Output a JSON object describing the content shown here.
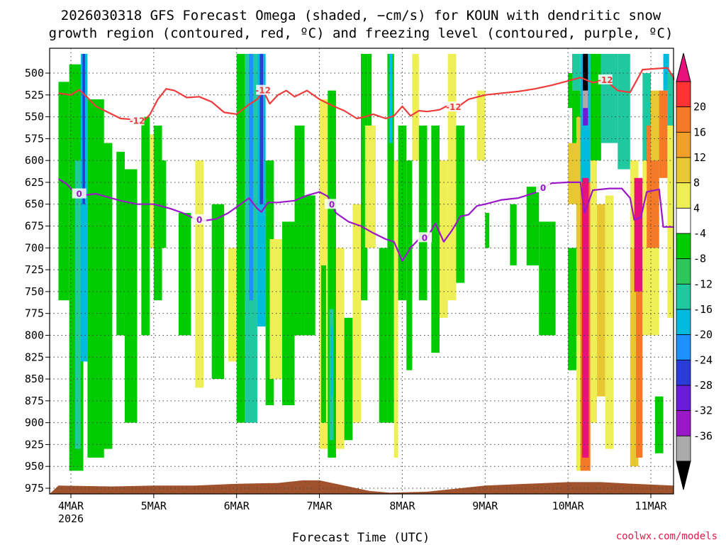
{
  "chart_data": {
    "type": "heatmap",
    "title_line1": "2026030318 GFS Forecast Omega (shaded, −cm/s) for KOUN with dendritic snow",
    "title_line2": "growth region (contoured, red, ºC) and freezing level (contoured, purple, ºC)",
    "xlabel": "Forecast Time (UTC)",
    "credit": "coolwx.com/models",
    "x_ticks": [
      {
        "day": 4,
        "label": "4MAR",
        "sublabel": "2026"
      },
      {
        "day": 5,
        "label": "5MAR"
      },
      {
        "day": 6,
        "label": "6MAR"
      },
      {
        "day": 7,
        "label": "7MAR"
      },
      {
        "day": 8,
        "label": "8MAR"
      },
      {
        "day": 9,
        "label": "9MAR"
      },
      {
        "day": 10,
        "label": "10MAR"
      },
      {
        "day": 11,
        "label": "11MAR"
      }
    ],
    "xlim_days": [
      3.85,
      11.4
    ],
    "y_ticks": [
      "500",
      "525",
      "550",
      "575",
      "600",
      "625",
      "650",
      "675",
      "700",
      "725",
      "750",
      "775",
      "800",
      "825",
      "850",
      "875",
      "900",
      "925",
      "950",
      "975"
    ],
    "ylim_hpa": [
      478,
      988
    ],
    "colorbar": {
      "labels": [
        "20",
        "16",
        "12",
        "8",
        "4",
        "-4",
        "-8",
        "-12",
        "-16",
        "-20",
        "-24",
        "-28",
        "-32",
        "-36"
      ],
      "colors": [
        "#e8127a",
        "#ff3333",
        "#f47a28",
        "#f0a028",
        "#e8c832",
        "#eeee55",
        "#ffffff",
        "#00cc00",
        "#2ec85a",
        "#20c8a0",
        "#00bbdd",
        "#1e90ff",
        "#2a3cd8",
        "#6a1cd8",
        "#9a18c8",
        "#aaaaaa",
        "#000000"
      ]
    },
    "dgz_label": "-12",
    "dgz_curve_hpa": [
      [
        3.85,
        523
      ],
      [
        4.0,
        525
      ],
      [
        4.1,
        519
      ],
      [
        4.2,
        528
      ],
      [
        4.3,
        538
      ],
      [
        4.45,
        545
      ],
      [
        4.6,
        552
      ],
      [
        4.75,
        553
      ],
      [
        4.85,
        557
      ],
      [
        4.95,
        548
      ],
      [
        5.05,
        530
      ],
      [
        5.15,
        518
      ],
      [
        5.25,
        520
      ],
      [
        5.4,
        528
      ],
      [
        5.55,
        527
      ],
      [
        5.7,
        533
      ],
      [
        5.85,
        545
      ],
      [
        6.0,
        547
      ],
      [
        6.15,
        536
      ],
      [
        6.25,
        530
      ],
      [
        6.32,
        520
      ],
      [
        6.4,
        535
      ],
      [
        6.5,
        525
      ],
      [
        6.6,
        520
      ],
      [
        6.7,
        527
      ],
      [
        6.85,
        520
      ],
      [
        7.0,
        530
      ],
      [
        7.15,
        537
      ],
      [
        7.3,
        543
      ],
      [
        7.45,
        552
      ],
      [
        7.55,
        550
      ],
      [
        7.65,
        547
      ],
      [
        7.8,
        552
      ],
      [
        7.9,
        549
      ],
      [
        8.0,
        538
      ],
      [
        8.1,
        549
      ],
      [
        8.2,
        543
      ],
      [
        8.3,
        544
      ],
      [
        8.45,
        542
      ],
      [
        8.55,
        537
      ],
      [
        8.65,
        540
      ],
      [
        8.8,
        530
      ],
      [
        9.0,
        525
      ],
      [
        9.2,
        523
      ],
      [
        9.4,
        521
      ],
      [
        9.6,
        518
      ],
      [
        9.8,
        514
      ],
      [
        10.0,
        509
      ],
      [
        10.15,
        505
      ],
      [
        10.3,
        511
      ],
      [
        10.45,
        508
      ],
      [
        10.6,
        520
      ],
      [
        10.75,
        522
      ],
      [
        10.9,
        496
      ],
      [
        11.05,
        495
      ],
      [
        11.2,
        494
      ],
      [
        11.3,
        505
      ],
      [
        11.4,
        508
      ]
    ],
    "dgz_label_days": [
      4.8,
      6.32,
      8.62,
      10.45
    ],
    "freezing_label": "0",
    "freezing_curve_hpa": [
      [
        3.85,
        621
      ],
      [
        3.95,
        627
      ],
      [
        4.05,
        637
      ],
      [
        4.15,
        640
      ],
      [
        4.3,
        638
      ],
      [
        4.45,
        642
      ],
      [
        4.6,
        646
      ],
      [
        4.8,
        650
      ],
      [
        5.0,
        650
      ],
      [
        5.2,
        655
      ],
      [
        5.35,
        660
      ],
      [
        5.5,
        667
      ],
      [
        5.6,
        669
      ],
      [
        5.75,
        667
      ],
      [
        5.9,
        660
      ],
      [
        6.05,
        650
      ],
      [
        6.15,
        643
      ],
      [
        6.25,
        655
      ],
      [
        6.3,
        659
      ],
      [
        6.38,
        648
      ],
      [
        6.5,
        648
      ],
      [
        6.7,
        646
      ],
      [
        6.85,
        640
      ],
      [
        7.0,
        636
      ],
      [
        7.1,
        641
      ],
      [
        7.2,
        660
      ],
      [
        7.35,
        670
      ],
      [
        7.5,
        675
      ],
      [
        7.65,
        683
      ],
      [
        7.8,
        690
      ],
      [
        7.9,
        693
      ],
      [
        8.0,
        715
      ],
      [
        8.1,
        700
      ],
      [
        8.2,
        690
      ],
      [
        8.3,
        688
      ],
      [
        8.4,
        672
      ],
      [
        8.5,
        693
      ],
      [
        8.6,
        680
      ],
      [
        8.7,
        664
      ],
      [
        8.8,
        662
      ],
      [
        8.9,
        652
      ],
      [
        9.0,
        650
      ],
      [
        9.2,
        645
      ],
      [
        9.4,
        643
      ],
      [
        9.6,
        637
      ],
      [
        9.8,
        626
      ],
      [
        10.0,
        625
      ],
      [
        10.15,
        625
      ],
      [
        10.2,
        660
      ],
      [
        10.3,
        634
      ],
      [
        10.5,
        632
      ],
      [
        10.65,
        632
      ],
      [
        10.75,
        643
      ],
      [
        10.8,
        668
      ],
      [
        10.88,
        665
      ],
      [
        10.95,
        636
      ],
      [
        11.1,
        633
      ],
      [
        11.15,
        676
      ],
      [
        11.4,
        676
      ]
    ],
    "freezing_label_days": [
      4.1,
      5.55,
      7.15,
      8.27,
      9.7
    ],
    "omega_patches": [
      {
        "d0": 3.85,
        "d1": 3.98,
        "p0": 510,
        "p1": 760,
        "level": "-8"
      },
      {
        "d0": 3.98,
        "d1": 4.15,
        "p0": 490,
        "p1": 955,
        "level": "-8"
      },
      {
        "d0": 4.05,
        "d1": 4.12,
        "p0": 600,
        "p1": 930,
        "level": "-12"
      },
      {
        "d0": 4.12,
        "d1": 4.2,
        "p0": 478,
        "p1": 830,
        "level": "-16"
      },
      {
        "d0": 4.14,
        "d1": 4.17,
        "p0": 478,
        "p1": 650,
        "level": "-24"
      },
      {
        "d0": 4.2,
        "d1": 4.4,
        "p0": 530,
        "p1": 940,
        "level": "-8"
      },
      {
        "d0": 4.35,
        "d1": 4.5,
        "p0": 580,
        "p1": 930,
        "level": "-8"
      },
      {
        "d0": 4.55,
        "d1": 4.65,
        "p0": 590,
        "p1": 800,
        "level": "-8"
      },
      {
        "d0": 4.65,
        "d1": 4.8,
        "p0": 610,
        "p1": 900,
        "level": "-8"
      },
      {
        "d0": 4.85,
        "d1": 4.95,
        "p0": 550,
        "p1": 800,
        "level": "-8"
      },
      {
        "d0": 4.95,
        "d1": 5.0,
        "p0": 570,
        "p1": 700,
        "level": "4"
      },
      {
        "d0": 5.0,
        "d1": 5.1,
        "p0": 560,
        "p1": 760,
        "level": "-8"
      },
      {
        "d0": 5.1,
        "d1": 5.15,
        "p0": 600,
        "p1": 700,
        "level": "-8"
      },
      {
        "d0": 5.3,
        "d1": 5.45,
        "p0": 660,
        "p1": 800,
        "level": "-8"
      },
      {
        "d0": 5.5,
        "d1": 5.6,
        "p0": 600,
        "p1": 860,
        "level": "4"
      },
      {
        "d0": 5.7,
        "d1": 5.85,
        "p0": 650,
        "p1": 850,
        "level": "-8"
      },
      {
        "d0": 5.9,
        "d1": 6.0,
        "p0": 700,
        "p1": 830,
        "level": "4"
      },
      {
        "d0": 6.0,
        "d1": 6.1,
        "p0": 478,
        "p1": 900,
        "level": "-8"
      },
      {
        "d0": 6.1,
        "d1": 6.25,
        "p0": 478,
        "p1": 900,
        "level": "-12"
      },
      {
        "d0": 6.15,
        "d1": 6.2,
        "p0": 478,
        "p1": 760,
        "level": "-20"
      },
      {
        "d0": 6.25,
        "d1": 6.35,
        "p0": 478,
        "p1": 790,
        "level": "-16"
      },
      {
        "d0": 6.28,
        "d1": 6.32,
        "p0": 478,
        "p1": 650,
        "level": "-24"
      },
      {
        "d0": 6.35,
        "d1": 6.45,
        "p0": 600,
        "p1": 880,
        "level": "-8"
      },
      {
        "d0": 6.4,
        "d1": 6.55,
        "p0": 690,
        "p1": 850,
        "level": "4"
      },
      {
        "d0": 6.55,
        "d1": 6.7,
        "p0": 670,
        "p1": 880,
        "level": "-8"
      },
      {
        "d0": 6.7,
        "d1": 6.82,
        "p0": 560,
        "p1": 800,
        "level": "-8"
      },
      {
        "d0": 6.82,
        "d1": 6.95,
        "p0": 640,
        "p1": 800,
        "level": "-8"
      },
      {
        "d0": 7.0,
        "d1": 7.1,
        "p0": 530,
        "p1": 930,
        "level": "4"
      },
      {
        "d0": 7.02,
        "d1": 7.08,
        "p0": 720,
        "p1": 900,
        "level": "-8"
      },
      {
        "d0": 7.1,
        "d1": 7.2,
        "p0": 520,
        "p1": 940,
        "level": "-8"
      },
      {
        "d0": 7.12,
        "d1": 7.17,
        "p0": 770,
        "p1": 920,
        "level": "-12"
      },
      {
        "d0": 7.14,
        "d1": 7.16,
        "p0": 790,
        "p1": 870,
        "level": "-16"
      },
      {
        "d0": 7.2,
        "d1": 7.3,
        "p0": 700,
        "p1": 930,
        "level": "4"
      },
      {
        "d0": 7.3,
        "d1": 7.4,
        "p0": 780,
        "p1": 920,
        "level": "-8"
      },
      {
        "d0": 7.4,
        "d1": 7.5,
        "p0": 650,
        "p1": 900,
        "level": "4"
      },
      {
        "d0": 7.5,
        "d1": 7.58,
        "p0": 478,
        "p1": 760,
        "level": "-8"
      },
      {
        "d0": 7.58,
        "d1": 7.63,
        "p0": 478,
        "p1": 600,
        "level": "-8"
      },
      {
        "d0": 7.55,
        "d1": 7.68,
        "p0": 560,
        "p1": 700,
        "level": "4"
      },
      {
        "d0": 7.72,
        "d1": 7.82,
        "p0": 700,
        "p1": 900,
        "level": "-8"
      },
      {
        "d0": 7.82,
        "d1": 7.9,
        "p0": 478,
        "p1": 900,
        "level": "-8"
      },
      {
        "d0": 7.84,
        "d1": 7.88,
        "p0": 478,
        "p1": 580,
        "level": "-16"
      },
      {
        "d0": 7.9,
        "d1": 7.95,
        "p0": 600,
        "p1": 940,
        "level": "4"
      },
      {
        "d0": 7.95,
        "d1": 8.05,
        "p0": 560,
        "p1": 760,
        "level": "-8"
      },
      {
        "d0": 8.05,
        "d1": 8.12,
        "p0": 600,
        "p1": 840,
        "level": "-8"
      },
      {
        "d0": 8.12,
        "d1": 8.2,
        "p0": 478,
        "p1": 600,
        "level": "4"
      },
      {
        "d0": 8.2,
        "d1": 8.3,
        "p0": 560,
        "p1": 760,
        "level": "-8"
      },
      {
        "d0": 8.35,
        "d1": 8.45,
        "p0": 560,
        "p1": 820,
        "level": "-8"
      },
      {
        "d0": 8.45,
        "d1": 8.55,
        "p0": 600,
        "p1": 780,
        "level": "4"
      },
      {
        "d0": 8.55,
        "d1": 8.65,
        "p0": 478,
        "p1": 760,
        "level": "4"
      },
      {
        "d0": 8.65,
        "d1": 8.75,
        "p0": 560,
        "p1": 740,
        "level": "-8"
      },
      {
        "d0": 8.9,
        "d1": 9.0,
        "p0": 520,
        "p1": 600,
        "level": "4"
      },
      {
        "d0": 9.0,
        "d1": 9.05,
        "p0": 660,
        "p1": 700,
        "level": "-8"
      },
      {
        "d0": 9.3,
        "d1": 9.38,
        "p0": 650,
        "p1": 720,
        "level": "-8"
      },
      {
        "d0": 9.5,
        "d1": 9.65,
        "p0": 630,
        "p1": 720,
        "level": "-8"
      },
      {
        "d0": 9.65,
        "d1": 9.85,
        "p0": 670,
        "p1": 800,
        "level": "-8"
      },
      {
        "d0": 10.0,
        "d1": 10.05,
        "p0": 500,
        "p1": 540,
        "level": "-8"
      },
      {
        "d0": 10.0,
        "d1": 10.12,
        "p0": 580,
        "p1": 650,
        "level": "8"
      },
      {
        "d0": 10.0,
        "d1": 10.15,
        "p0": 700,
        "p1": 840,
        "level": "-8"
      },
      {
        "d0": 10.05,
        "d1": 10.15,
        "p0": 478,
        "p1": 520,
        "level": "-12"
      },
      {
        "d0": 10.05,
        "d1": 10.15,
        "p0": 520,
        "p1": 580,
        "level": "-8"
      },
      {
        "d0": 10.1,
        "d1": 10.2,
        "p0": 550,
        "p1": 800,
        "level": "8"
      },
      {
        "d0": 10.1,
        "d1": 10.2,
        "p0": 800,
        "p1": 955,
        "level": "4"
      },
      {
        "d0": 10.15,
        "d1": 10.27,
        "p0": 478,
        "p1": 625,
        "level": "-16"
      },
      {
        "d0": 10.15,
        "d1": 10.27,
        "p0": 625,
        "p1": 955,
        "level": "12"
      },
      {
        "d0": 10.17,
        "d1": 10.25,
        "p0": 620,
        "p1": 940,
        "level": "20"
      },
      {
        "d0": 10.18,
        "d1": 10.24,
        "p0": 478,
        "p1": 520,
        "level": "-36"
      },
      {
        "d0": 10.18,
        "d1": 10.24,
        "p0": 520,
        "p1": 540,
        "level": "-32"
      },
      {
        "d0": 10.18,
        "d1": 10.24,
        "p0": 540,
        "p1": 560,
        "level": "-28"
      },
      {
        "d0": 10.27,
        "d1": 10.4,
        "p0": 478,
        "p1": 600,
        "level": "-8"
      },
      {
        "d0": 10.27,
        "d1": 10.35,
        "p0": 600,
        "p1": 900,
        "level": "4"
      },
      {
        "d0": 10.35,
        "d1": 10.45,
        "p0": 650,
        "p1": 870,
        "level": "8"
      },
      {
        "d0": 10.4,
        "d1": 10.6,
        "p0": 478,
        "p1": 580,
        "level": "-12"
      },
      {
        "d0": 10.45,
        "d1": 10.55,
        "p0": 640,
        "p1": 930,
        "level": "4"
      },
      {
        "d0": 10.6,
        "d1": 10.75,
        "p0": 478,
        "p1": 610,
        "level": "-12"
      },
      {
        "d0": 10.75,
        "d1": 10.85,
        "p0": 600,
        "p1": 700,
        "level": "4"
      },
      {
        "d0": 10.75,
        "d1": 10.85,
        "p0": 700,
        "p1": 950,
        "level": "8"
      },
      {
        "d0": 10.8,
        "d1": 10.9,
        "p0": 620,
        "p1": 750,
        "level": "20"
      },
      {
        "d0": 10.82,
        "d1": 10.9,
        "p0": 750,
        "p1": 940,
        "level": "12"
      },
      {
        "d0": 10.9,
        "d1": 11.0,
        "p0": 500,
        "p1": 600,
        "level": "-12"
      },
      {
        "d0": 10.9,
        "d1": 11.1,
        "p0": 600,
        "p1": 800,
        "level": "4"
      },
      {
        "d0": 10.95,
        "d1": 11.1,
        "p0": 560,
        "p1": 700,
        "level": "12"
      },
      {
        "d0": 11.0,
        "d1": 11.15,
        "p0": 520,
        "p1": 600,
        "level": "8"
      },
      {
        "d0": 11.05,
        "d1": 11.15,
        "p0": 870,
        "p1": 935,
        "level": "-8"
      },
      {
        "d0": 11.15,
        "d1": 11.22,
        "p0": 478,
        "p1": 520,
        "level": "-16"
      },
      {
        "d0": 11.1,
        "d1": 11.2,
        "p0": 520,
        "p1": 620,
        "level": "12"
      },
      {
        "d0": 11.2,
        "d1": 11.3,
        "p0": 560,
        "p1": 780,
        "level": "4"
      },
      {
        "d0": 11.2,
        "d1": 11.3,
        "p0": 500,
        "p1": 560,
        "level": "-12"
      }
    ],
    "terrain_profile_hpa": [
      [
        3.85,
        972
      ],
      [
        4.5,
        973
      ],
      [
        5.0,
        972
      ],
      [
        5.5,
        972
      ],
      [
        6.0,
        970
      ],
      [
        6.5,
        969
      ],
      [
        6.8,
        966
      ],
      [
        7.0,
        966
      ],
      [
        7.3,
        972
      ],
      [
        7.6,
        978
      ],
      [
        7.85,
        980
      ],
      [
        8.3,
        979
      ],
      [
        8.7,
        975
      ],
      [
        9.0,
        972
      ],
      [
        9.5,
        970
      ],
      [
        10.0,
        968
      ],
      [
        10.4,
        968
      ],
      [
        10.8,
        970
      ],
      [
        11.4,
        972
      ]
    ],
    "terrain_color": "#a0522d"
  }
}
